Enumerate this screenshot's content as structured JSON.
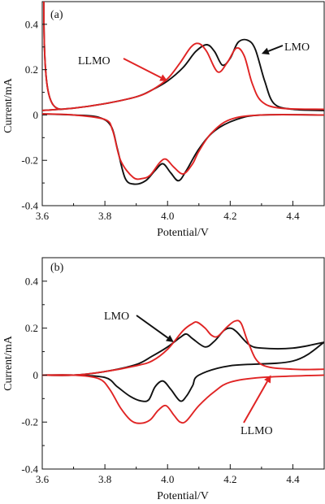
{
  "chart_data": [
    {
      "type": "line",
      "panel_label": "(a)",
      "xlabel": "Potential/V",
      "ylabel": "Current/mA",
      "xlim": [
        3.6,
        4.5
      ],
      "ylim": [
        -0.4,
        0.5
      ],
      "x_ticks": [
        3.6,
        3.8,
        4.0,
        4.2,
        4.4
      ],
      "x_tick_labels": [
        "3.6",
        "3.8",
        "4.0",
        "4.2",
        "4.4"
      ],
      "y_ticks": [
        -0.4,
        -0.2,
        0,
        0.2,
        0.4
      ],
      "y_tick_labels": [
        "-0.4",
        "-0.2",
        "0",
        "0.2",
        "0.4"
      ],
      "grid": false,
      "series": [
        {
          "name": "LMO",
          "color": "#111111",
          "anodic": [
            [
              3.6,
              0.02
            ],
            [
              3.7,
              0.03
            ],
            [
              3.8,
              0.05
            ],
            [
              3.9,
              0.08
            ],
            [
              3.95,
              0.11
            ],
            [
              4.0,
              0.15
            ],
            [
              4.05,
              0.21
            ],
            [
              4.09,
              0.28
            ],
            [
              4.125,
              0.31
            ],
            [
              4.15,
              0.28
            ],
            [
              4.175,
              0.22
            ],
            [
              4.2,
              0.25
            ],
            [
              4.225,
              0.32
            ],
            [
              4.255,
              0.33
            ],
            [
              4.28,
              0.29
            ],
            [
              4.31,
              0.15
            ],
            [
              4.34,
              0.05
            ],
            [
              4.4,
              0.025
            ],
            [
              4.5,
              0.02
            ]
          ],
          "cathodic": [
            [
              4.5,
              0.0
            ],
            [
              4.3,
              0.0
            ],
            [
              4.22,
              -0.02
            ],
            [
              4.15,
              -0.07
            ],
            [
              4.1,
              -0.15
            ],
            [
              4.06,
              -0.245
            ],
            [
              4.035,
              -0.29
            ],
            [
              4.01,
              -0.255
            ],
            [
              3.985,
              -0.215
            ],
            [
              3.96,
              -0.245
            ],
            [
              3.93,
              -0.29
            ],
            [
              3.895,
              -0.305
            ],
            [
              3.865,
              -0.28
            ],
            [
              3.84,
              -0.15
            ],
            [
              3.82,
              -0.05
            ],
            [
              3.78,
              -0.01
            ],
            [
              3.7,
              0.0
            ],
            [
              3.6,
              0.005
            ]
          ]
        },
        {
          "name": "LLMO",
          "color": "#e02424",
          "anodic": [
            [
              3.6,
              0.02
            ],
            [
              3.7,
              0.03
            ],
            [
              3.8,
              0.05
            ],
            [
              3.9,
              0.08
            ],
            [
              3.95,
              0.11
            ],
            [
              4.0,
              0.16
            ],
            [
              4.04,
              0.23
            ],
            [
              4.075,
              0.3
            ],
            [
              4.1,
              0.315
            ],
            [
              4.125,
              0.28
            ],
            [
              4.16,
              0.19
            ],
            [
              4.19,
              0.23
            ],
            [
              4.22,
              0.295
            ],
            [
              4.245,
              0.26
            ],
            [
              4.27,
              0.14
            ],
            [
              4.3,
              0.06
            ],
            [
              4.36,
              0.03
            ],
            [
              4.5,
              0.025
            ]
          ],
          "cathodic": [
            [
              4.5,
              0.0
            ],
            [
              4.3,
              0.0
            ],
            [
              4.2,
              -0.02
            ],
            [
              4.14,
              -0.08
            ],
            [
              4.1,
              -0.16
            ],
            [
              4.08,
              -0.215
            ],
            [
              4.05,
              -0.26
            ],
            [
              4.02,
              -0.23
            ],
            [
              3.995,
              -0.195
            ],
            [
              3.975,
              -0.21
            ],
            [
              3.945,
              -0.265
            ],
            [
              3.92,
              -0.28
            ],
            [
              3.89,
              -0.275
            ],
            [
              3.85,
              -0.2
            ],
            [
              3.825,
              -0.07
            ],
            [
              3.8,
              -0.02
            ],
            [
              3.7,
              0.0
            ],
            [
              3.6,
              0.005
            ]
          ]
        }
      ],
      "annotations": [
        {
          "text": "LMO",
          "series": "LMO",
          "arrow_to": [
            4.3,
            0.27
          ]
        },
        {
          "text": "LLMO",
          "series": "LLMO",
          "arrow_to": [
            4.0,
            0.15
          ]
        }
      ]
    },
    {
      "type": "line",
      "panel_label": "(b)",
      "xlabel": "Potential/V",
      "ylabel": "Current/mA",
      "xlim": [
        3.6,
        4.5
      ],
      "ylim": [
        -0.4,
        0.5
      ],
      "x_ticks": [
        3.6,
        3.8,
        4.0,
        4.2,
        4.4
      ],
      "x_tick_labels": [
        "3.6",
        "3.8",
        "4.0",
        "4.2",
        "4.4"
      ],
      "y_ticks": [
        -0.4,
        -0.2,
        0,
        0.2,
        0.4
      ],
      "y_tick_labels": [
        "-0.4",
        "-0.2",
        "0",
        "0.2",
        "0.4"
      ],
      "grid": false,
      "series": [
        {
          "name": "LMO",
          "color": "#111111",
          "anodic": [
            [
              3.6,
              0.0
            ],
            [
              3.7,
              0.0
            ],
            [
              3.8,
              0.015
            ],
            [
              3.9,
              0.045
            ],
            [
              3.95,
              0.08
            ],
            [
              4.0,
              0.12
            ],
            [
              4.04,
              0.16
            ],
            [
              4.06,
              0.175
            ],
            [
              4.08,
              0.155
            ],
            [
              4.12,
              0.12
            ],
            [
              4.15,
              0.145
            ],
            [
              4.18,
              0.19
            ],
            [
              4.2,
              0.2
            ],
            [
              4.22,
              0.185
            ],
            [
              4.26,
              0.13
            ],
            [
              4.3,
              0.115
            ],
            [
              4.4,
              0.115
            ],
            [
              4.5,
              0.14
            ]
          ],
          "cathodic": [
            [
              4.5,
              0.14
            ],
            [
              4.4,
              0.06
            ],
            [
              4.2,
              0.04
            ],
            [
              4.1,
              0.0
            ],
            [
              4.08,
              -0.045
            ],
            [
              4.06,
              -0.09
            ],
            [
              4.04,
              -0.11
            ],
            [
              4.01,
              -0.06
            ],
            [
              3.985,
              -0.025
            ],
            [
              3.96,
              -0.05
            ],
            [
              3.94,
              -0.105
            ],
            [
              3.915,
              -0.11
            ],
            [
              3.88,
              -0.09
            ],
            [
              3.84,
              -0.05
            ],
            [
              3.8,
              -0.01
            ],
            [
              3.7,
              0.0
            ],
            [
              3.6,
              0.0
            ]
          ]
        },
        {
          "name": "LLMO",
          "color": "#e02424",
          "anodic": [
            [
              3.6,
              0.0
            ],
            [
              3.7,
              0.0
            ],
            [
              3.8,
              0.015
            ],
            [
              3.9,
              0.04
            ],
            [
              3.95,
              0.06
            ],
            [
              4.0,
              0.11
            ],
            [
              4.05,
              0.19
            ],
            [
              4.08,
              0.22
            ],
            [
              4.095,
              0.225
            ],
            [
              4.12,
              0.2
            ],
            [
              4.14,
              0.17
            ],
            [
              4.16,
              0.165
            ],
            [
              4.19,
              0.205
            ],
            [
              4.215,
              0.23
            ],
            [
              4.235,
              0.22
            ],
            [
              4.26,
              0.13
            ],
            [
              4.3,
              0.045
            ],
            [
              4.4,
              0.025
            ],
            [
              4.5,
              0.025
            ]
          ],
          "cathodic": [
            [
              4.5,
              0.0
            ],
            [
              4.3,
              -0.01
            ],
            [
              4.2,
              -0.03
            ],
            [
              4.15,
              -0.07
            ],
            [
              4.1,
              -0.13
            ],
            [
              4.06,
              -0.195
            ],
            [
              4.04,
              -0.2
            ],
            [
              4.02,
              -0.17
            ],
            [
              3.995,
              -0.13
            ],
            [
              3.97,
              -0.15
            ],
            [
              3.945,
              -0.19
            ],
            [
              3.915,
              -0.205
            ],
            [
              3.885,
              -0.195
            ],
            [
              3.85,
              -0.14
            ],
            [
              3.815,
              -0.06
            ],
            [
              3.78,
              -0.015
            ],
            [
              3.7,
              0.0
            ],
            [
              3.6,
              0.0
            ]
          ]
        }
      ],
      "annotations": [
        {
          "text": "LMO",
          "series": "LMO",
          "arrow_to": [
            4.02,
            0.14
          ]
        },
        {
          "text": "LLMO",
          "series": "LLMO",
          "arrow_to": [
            4.33,
            0.0
          ]
        }
      ]
    }
  ]
}
